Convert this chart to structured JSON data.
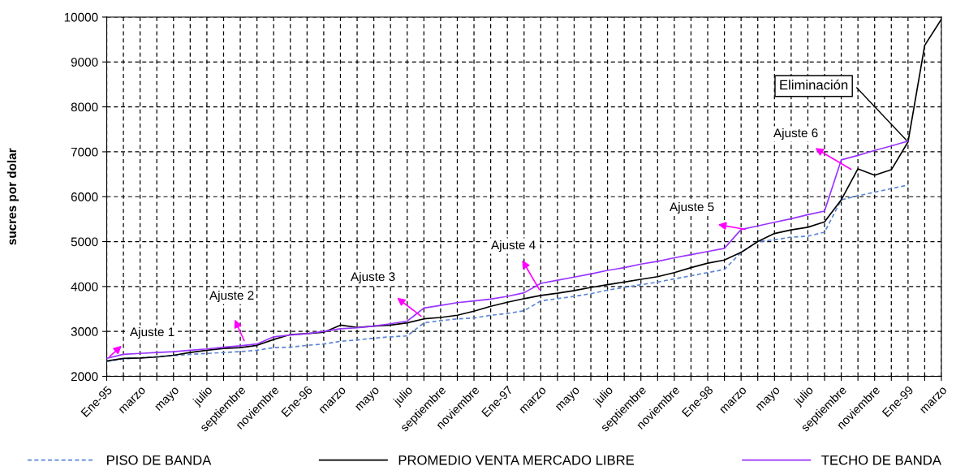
{
  "chart_data": {
    "type": "line",
    "ylabel": "sucres por dolar",
    "categories": [
      "Ene-95",
      null,
      "marzo",
      null,
      "mayo",
      null,
      "julio",
      null,
      "septiembre",
      null,
      "noviembre",
      null,
      "Ene-96",
      null,
      "marzo",
      null,
      "mayo",
      null,
      "julio",
      null,
      "septiembre",
      null,
      "noviembre",
      null,
      "Ene-97",
      null,
      "marzo",
      null,
      "mayo",
      null,
      "julio",
      null,
      "septiembre",
      null,
      "noviembre",
      null,
      "Ene-98",
      null,
      "marzo",
      null,
      "mayo",
      null,
      "julio",
      null,
      "septiembre",
      null,
      "noviembre",
      null,
      "Ene-99",
      null,
      "marzo"
    ],
    "series": [
      {
        "name": "PISO DE BANDA",
        "color": "#5b86d6",
        "line_style": "dashed",
        "values": [
          2330,
          2390,
          2410,
          2440,
          2460,
          2490,
          2510,
          2530,
          2550,
          2580,
          2640,
          2650,
          2690,
          2720,
          2780,
          2810,
          2850,
          2880,
          2900,
          3190,
          3240,
          3280,
          3300,
          3360,
          3400,
          3460,
          3680,
          3730,
          3780,
          3840,
          3920,
          3980,
          4040,
          4100,
          4170,
          4240,
          4310,
          4380,
          4760,
          5000,
          5040,
          5100,
          5120,
          5210,
          5930,
          6020,
          6100,
          6180,
          6260,
          null,
          null
        ]
      },
      {
        "name": "PROMEDIO VENTA MERCADO LIBRE",
        "color": "#000000",
        "line_style": "solid",
        "values": [
          2340,
          2400,
          2410,
          2430,
          2470,
          2530,
          2580,
          2620,
          2640,
          2690,
          2820,
          2930,
          2950,
          2980,
          3140,
          3090,
          3120,
          3140,
          3190,
          3280,
          3310,
          3360,
          3450,
          3560,
          3650,
          3730,
          3800,
          3850,
          3910,
          3980,
          4040,
          4100,
          4160,
          4220,
          4310,
          4420,
          4520,
          4590,
          4760,
          5000,
          5180,
          5260,
          5320,
          5440,
          5930,
          6620,
          6480,
          6600,
          7220,
          9370,
          9950
        ]
      },
      {
        "name": "TECHO DE BANDA",
        "color": "#9933ff",
        "line_style": "solid",
        "values": [
          2400,
          2490,
          2510,
          2530,
          2550,
          2580,
          2610,
          2650,
          2680,
          2720,
          2880,
          2920,
          2950,
          3000,
          3060,
          3080,
          3120,
          3170,
          3230,
          3520,
          3580,
          3640,
          3680,
          3720,
          3780,
          3860,
          4070,
          4140,
          4210,
          4280,
          4360,
          4420,
          4500,
          4560,
          4640,
          4710,
          4780,
          4850,
          5270,
          5350,
          5430,
          5510,
          5600,
          5680,
          6820,
          6920,
          7030,
          7130,
          7240,
          null,
          null
        ]
      }
    ],
    "ylim": [
      2000,
      10000
    ],
    "yticks": [
      2000,
      3000,
      4000,
      5000,
      6000,
      7000,
      8000,
      9000,
      10000
    ],
    "grid": true,
    "legend": "bottom",
    "marker": "none",
    "annotations": [
      "Ajuste 1",
      "Ajuste 2",
      "Ajuste 3",
      "Ajuste 4",
      "Ajuste 5",
      "Ajuste 6",
      {
        "text": "Eliminación",
        "x": "Ene-99",
        "y": 7220
      }
    ]
  }
}
